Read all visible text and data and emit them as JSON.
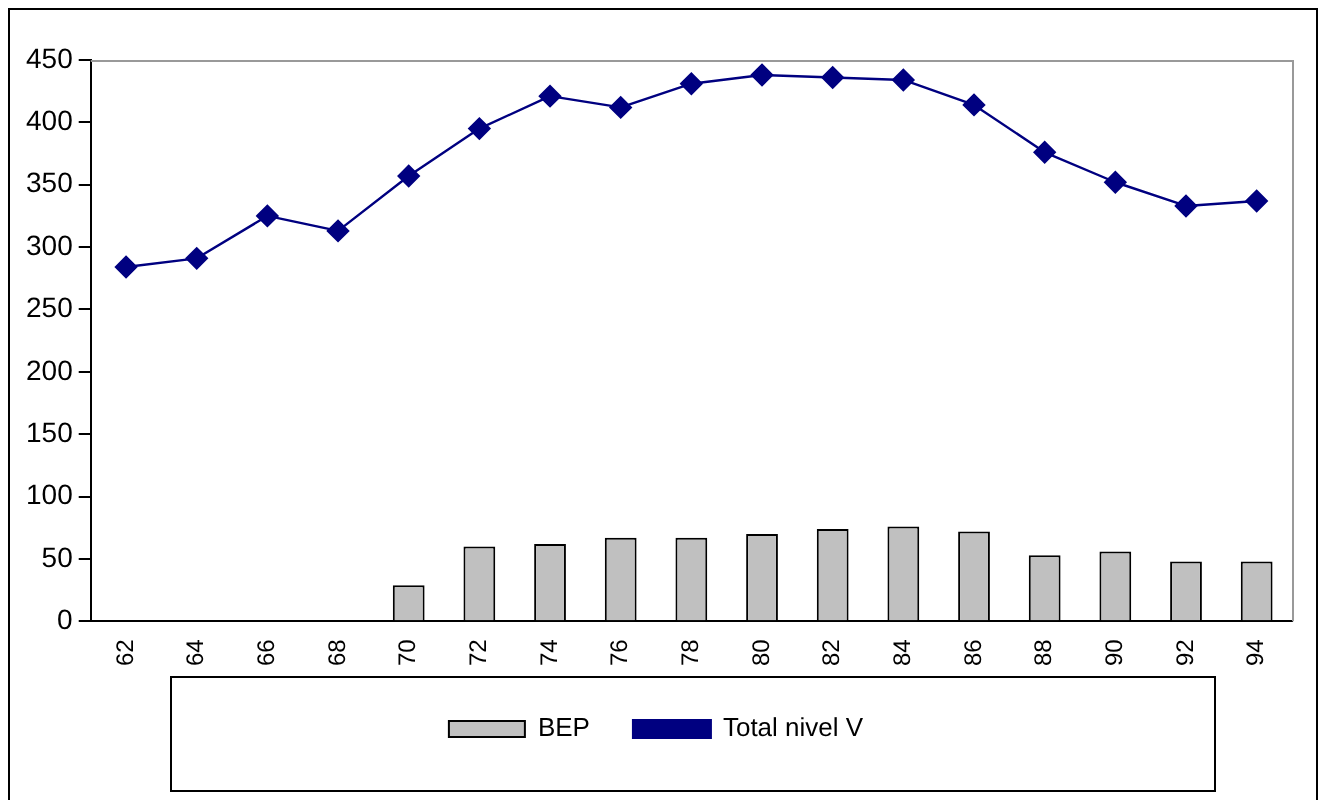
{
  "chart_data": {
    "type": "bar",
    "categories": [
      "62",
      "64",
      "66",
      "68",
      "70",
      "72",
      "74",
      "76",
      "78",
      "80",
      "82",
      "84",
      "86",
      "88",
      "90",
      "92",
      "94"
    ],
    "series": [
      {
        "name": "BEP",
        "color": "#c0c0c0",
        "values": [
          null,
          null,
          null,
          null,
          29,
          60,
          62,
          67,
          67,
          70,
          74,
          76,
          72,
          53,
          56,
          48,
          48
        ]
      },
      {
        "name": "Total nivel V",
        "type": "line",
        "color": "#000080",
        "marker": "diamond",
        "values": [
          284,
          291,
          325,
          313,
          357,
          395,
          421,
          412,
          431,
          438,
          436,
          434,
          414,
          376,
          352,
          333,
          337
        ]
      }
    ],
    "ylim": [
      0,
      450
    ],
    "yticks": [
      0,
      50,
      100,
      150,
      200,
      250,
      300,
      350,
      400,
      450
    ],
    "grid": false,
    "legend": "bottom"
  }
}
